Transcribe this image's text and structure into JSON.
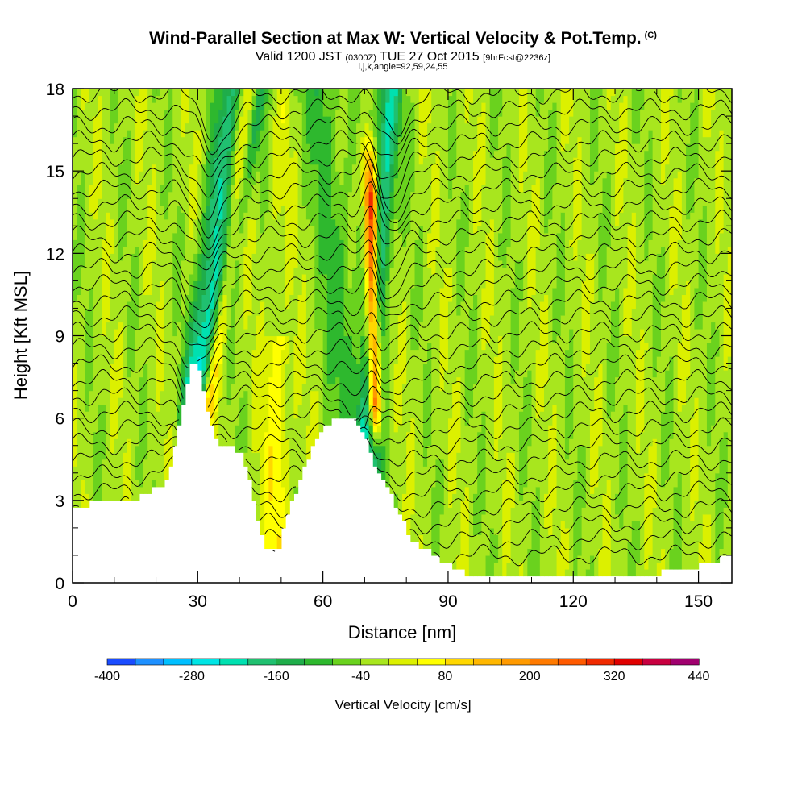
{
  "header": {
    "title": "Wind-Parallel Section at Max W: Vertical Velocity & Pot.Temp.",
    "title_tag": "(C)",
    "valid_prefix": "Valid 1200 JST",
    "valid_small": "(0300Z)",
    "valid_date": "TUE 27 Oct 2015",
    "forecast_small": "[9hrFcst@2236z]",
    "indices": "i,j,k,angle=92,59,24,55"
  },
  "chart_data": {
    "type": "heatmap",
    "xlabel": "Distance [nm]",
    "ylabel": "Height [Kft MSL]",
    "xlim": [
      0,
      158
    ],
    "ylim": [
      0,
      18
    ],
    "x_ticks": [
      "0",
      "30",
      "60",
      "90",
      "120",
      "150"
    ],
    "y_ticks": [
      "0",
      "3",
      "6",
      "9",
      "12",
      "15",
      "18"
    ],
    "colorbar": {
      "title": "Vertical Velocity [cm/s]",
      "range": [
        -400,
        440
      ],
      "step": 40,
      "labels": [
        "-400",
        "-280",
        "-160",
        "-40",
        "80",
        "200",
        "320",
        "440"
      ],
      "colors": [
        "#0000ff",
        "#1a4cff",
        "#1e90ff",
        "#00bfff",
        "#00e5e5",
        "#00e0b0",
        "#20c070",
        "#1fad4a",
        "#2eb82e",
        "#6ad21e",
        "#a8e61e",
        "#dcf000",
        "#ffff00",
        "#ffd700",
        "#ffb700",
        "#ff9a00",
        "#ff7a00",
        "#ff5a00",
        "#f02a00",
        "#e00000",
        "#c80040",
        "#a0006e",
        "#6a009c"
      ]
    },
    "terrain_nm_kft": [
      [
        0,
        2.6
      ],
      [
        4,
        2.9
      ],
      [
        10,
        2.9
      ],
      [
        18,
        3.2
      ],
      [
        23,
        3.8
      ],
      [
        26,
        6
      ],
      [
        29,
        8.3
      ],
      [
        31,
        7.4
      ],
      [
        33,
        5.8
      ],
      [
        35,
        5.1
      ],
      [
        38,
        5.1
      ],
      [
        41,
        4.6
      ],
      [
        43,
        3.4
      ],
      [
        46,
        1.3
      ],
      [
        49,
        1.1
      ],
      [
        52,
        2.7
      ],
      [
        56,
        4.4
      ],
      [
        59,
        5.4
      ],
      [
        63,
        6.1
      ],
      [
        67,
        6.0
      ],
      [
        70,
        5.4
      ],
      [
        73,
        4.1
      ],
      [
        77,
        3.0
      ],
      [
        81,
        1.6
      ],
      [
        85,
        1.2
      ],
      [
        90,
        0.7
      ],
      [
        94,
        0.35
      ],
      [
        100,
        0.35
      ],
      [
        120,
        0.35
      ],
      [
        140,
        0.35
      ],
      [
        150,
        0.6
      ],
      [
        158,
        1.0
      ]
    ],
    "updraft_core": {
      "x": 72,
      "y_range": [
        5.5,
        15
      ],
      "w_max": 400
    },
    "downdraft_bands": [
      {
        "x_bottom": 28,
        "x_top": 38,
        "w": -160
      },
      {
        "x_bottom": 71,
        "x_top": 76,
        "w": -200
      }
    ],
    "theta_contours": 30
  }
}
